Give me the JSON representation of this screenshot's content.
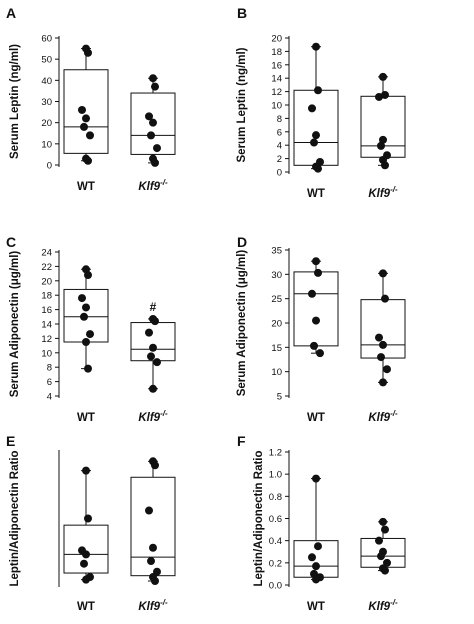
{
  "chart_data": [
    {
      "panel": "A",
      "type": "box",
      "ylabel": "Serum Leptin (ng/ml)",
      "categories": [
        "WT",
        "Klf9-/-"
      ],
      "ylim": [
        0,
        60
      ],
      "yticks": [
        0,
        10,
        20,
        30,
        40,
        50,
        60
      ],
      "boxes": [
        {
          "q1": 5.5,
          "median": 18,
          "q3": 45,
          "min": 2,
          "max": 55,
          "points": [
            55,
            53,
            26,
            22,
            18,
            14,
            3,
            2
          ]
        },
        {
          "q1": 5,
          "median": 14,
          "q3": 34,
          "min": 1,
          "max": 41,
          "points": [
            41,
            37,
            23,
            20,
            14,
            8,
            3,
            1
          ]
        }
      ],
      "annotations": []
    },
    {
      "panel": "B",
      "type": "box",
      "ylabel": "Serum Leptin (ng/ml)",
      "categories": [
        "WT",
        "Klf9-/-"
      ],
      "ylim": [
        0,
        20
      ],
      "yticks": [
        0,
        2,
        4,
        6,
        8,
        10,
        12,
        14,
        16,
        18,
        20
      ],
      "boxes": [
        {
          "q1": 1,
          "median": 4.4,
          "q3": 12.2,
          "min": 0.5,
          "max": 18.7,
          "points": [
            18.7,
            12.2,
            9.5,
            5.5,
            4.4,
            1.5,
            0.8,
            0.5
          ]
        },
        {
          "q1": 2.2,
          "median": 3.9,
          "q3": 11.3,
          "min": 1,
          "max": 14.2,
          "points": [
            14.2,
            11.5,
            11.2,
            4.8,
            3.9,
            2.5,
            1.8,
            1
          ]
        }
      ],
      "annotations": []
    },
    {
      "panel": "C",
      "type": "box",
      "ylabel": "Serum Adiponectin (μg/ml)",
      "categories": [
        "WT",
        "Klf9-/-"
      ],
      "ylim": [
        4,
        24
      ],
      "yticks": [
        4,
        6,
        8,
        10,
        12,
        14,
        16,
        18,
        20,
        22,
        24
      ],
      "boxes": [
        {
          "q1": 11.5,
          "median": 15,
          "q3": 18.8,
          "min": 7.8,
          "max": 21.6,
          "points": [
            21.6,
            20.8,
            17.6,
            16.3,
            15,
            12.6,
            11.5,
            7.8
          ]
        },
        {
          "q1": 8.9,
          "median": 10.5,
          "q3": 14.2,
          "min": 5,
          "max": 14.7,
          "points": [
            14.7,
            14.4,
            12.8,
            10.7,
            9.5,
            8.7,
            5
          ]
        }
      ],
      "annotations": [
        {
          "text": "#",
          "category_index": 1
        }
      ]
    },
    {
      "panel": "D",
      "type": "box",
      "ylabel": "Serum Adiponectin (μg/ml)",
      "categories": [
        "WT",
        "Klf9-/-"
      ],
      "ylim": [
        5,
        35
      ],
      "yticks": [
        5,
        10,
        15,
        20,
        25,
        30,
        35
      ],
      "boxes": [
        {
          "q1": 15.3,
          "median": 26,
          "q3": 30.5,
          "min": 13.8,
          "max": 32.7,
          "points": [
            32.7,
            30.3,
            26,
            20.5,
            15.3,
            13.8
          ]
        },
        {
          "q1": 12.8,
          "median": 15.5,
          "q3": 24.8,
          "min": 7.8,
          "max": 30.2,
          "points": [
            30.2,
            25,
            17,
            15.5,
            13,
            10.5,
            7.8
          ]
        }
      ],
      "annotations": []
    },
    {
      "panel": "E",
      "type": "box",
      "ylabel": "Leptin/Adiponectin Ratio",
      "categories": [
        "WT",
        "Klf9-/-"
      ],
      "ylim": [
        0,
        5
      ],
      "yticks": [],
      "boxes": [
        {
          "q1": 0.45,
          "median": 1.15,
          "q3": 2.25,
          "min": 0.2,
          "max": 4.3,
          "points": [
            4.3,
            2.5,
            1.3,
            1.15,
            0.8,
            0.3,
            0.2
          ]
        },
        {
          "q1": 0.35,
          "median": 1.05,
          "q3": 4.05,
          "min": 0.15,
          "max": 4.65,
          "points": [
            4.65,
            4.5,
            2.8,
            1.4,
            0.9,
            0.5,
            0.3,
            0.15
          ]
        }
      ],
      "annotations": []
    },
    {
      "panel": "F",
      "type": "box",
      "ylabel": "Leptin/Adiponectin Ratio",
      "categories": [
        "WT",
        "Klf9-/-"
      ],
      "ylim": [
        0,
        1.2
      ],
      "yticks": [
        0.0,
        0.2,
        0.4,
        0.6,
        0.8,
        1.0,
        1.2
      ],
      "boxes": [
        {
          "q1": 0.07,
          "median": 0.17,
          "q3": 0.4,
          "min": 0.05,
          "max": 0.96,
          "points": [
            0.96,
            0.35,
            0.25,
            0.17,
            0.1,
            0.07,
            0.05
          ]
        },
        {
          "q1": 0.16,
          "median": 0.26,
          "q3": 0.42,
          "min": 0.13,
          "max": 0.57,
          "points": [
            0.57,
            0.5,
            0.4,
            0.3,
            0.26,
            0.2,
            0.15,
            0.13
          ]
        }
      ],
      "annotations": []
    }
  ]
}
